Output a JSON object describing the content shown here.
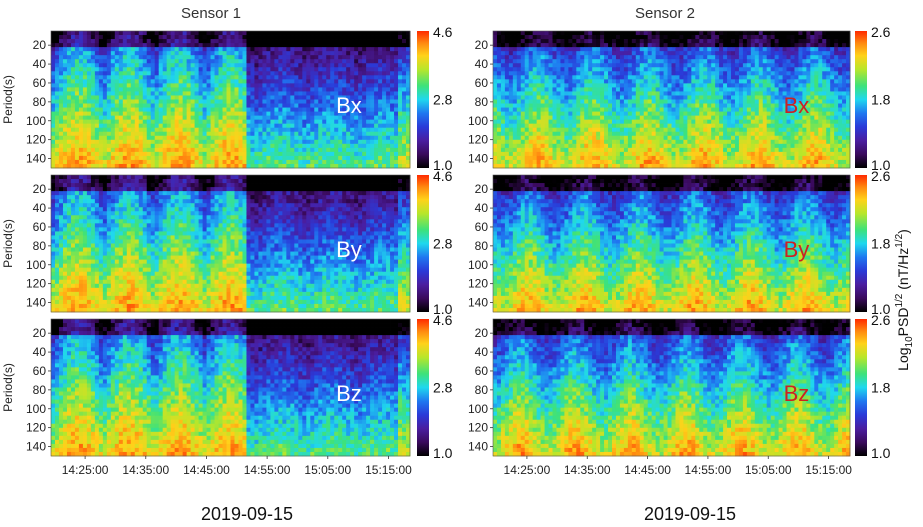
{
  "chart_data": [
    {
      "type": "heatmap",
      "title": "Sensor 1",
      "component": "Bx",
      "ylabel": "Period(s)",
      "y_ticks": [
        20,
        40,
        60,
        80,
        100,
        120,
        140
      ],
      "x_ticks": [],
      "colorbar": {
        "min": 1.0,
        "mid": 2.8,
        "max": 4.6,
        "labels": [
          "4.6",
          "2.8",
          "1.0"
        ]
      }
    },
    {
      "type": "heatmap",
      "title": "Sensor 1",
      "component": "By",
      "ylabel": "Period(s)",
      "y_ticks": [
        20,
        40,
        60,
        80,
        100,
        120,
        140
      ],
      "x_ticks": [],
      "colorbar": {
        "min": 1.0,
        "mid": 2.8,
        "max": 4.6,
        "labels": [
          "4.6",
          "2.8",
          "1.0"
        ]
      }
    },
    {
      "type": "heatmap",
      "title": "Sensor 1",
      "component": "Bz",
      "ylabel": "Period(s)",
      "y_ticks": [
        20,
        40,
        60,
        80,
        100,
        120,
        140
      ],
      "x_ticks": [
        "14:25:00",
        "14:35:00",
        "14:45:00",
        "14:55:00",
        "15:05:00",
        "15:15:00"
      ],
      "xlabel": "2019-09-15",
      "colorbar": {
        "min": 1.0,
        "mid": 2.8,
        "max": 4.6,
        "labels": [
          "4.6",
          "2.8",
          "1.0"
        ]
      }
    },
    {
      "type": "heatmap",
      "title": "Sensor 2",
      "component": "Bx",
      "y_ticks": [
        20,
        40,
        60,
        80,
        100,
        120,
        140
      ],
      "x_ticks": [],
      "colorbar": {
        "min": 1.0,
        "mid": 1.8,
        "max": 2.6,
        "labels": [
          "2.6",
          "1.8",
          "1.0"
        ]
      }
    },
    {
      "type": "heatmap",
      "title": "Sensor 2",
      "component": "By",
      "y_ticks": [
        20,
        40,
        60,
        80,
        100,
        120,
        140
      ],
      "x_ticks": [],
      "colorbar": {
        "min": 1.0,
        "mid": 1.8,
        "max": 2.6,
        "labels": [
          "2.6",
          "1.8",
          "1.0"
        ]
      }
    },
    {
      "type": "heatmap",
      "title": "Sensor 2",
      "component": "Bz",
      "y_ticks": [
        20,
        40,
        60,
        80,
        100,
        120,
        140
      ],
      "x_ticks": [
        "14:25:00",
        "14:35:00",
        "14:45:00",
        "14:55:00",
        "15:05:00",
        "15:15:00"
      ],
      "xlabel": "2019-09-15",
      "colorbar": {
        "min": 1.0,
        "mid": 1.8,
        "max": 2.6,
        "labels": [
          "2.6",
          "1.8",
          "1.0"
        ]
      }
    }
  ],
  "sensors": {
    "left": "Sensor 1",
    "right": "Sensor 2"
  },
  "colorbar_title": "Log10PSD1/2 (nT/Hz1/2)",
  "component_colors": {
    "left": "#ffffff",
    "right": "#cc2222"
  },
  "colormap": [
    "#000000",
    "#3a0a5c",
    "#4a1ea0",
    "#2a3ad8",
    "#1f78f0",
    "#1fd8ee",
    "#3de27a",
    "#b8e62a",
    "#ffd21a",
    "#ff8a10",
    "#ff2a00"
  ],
  "dates": {
    "left": "2019-09-15",
    "right": "2019-09-15"
  }
}
